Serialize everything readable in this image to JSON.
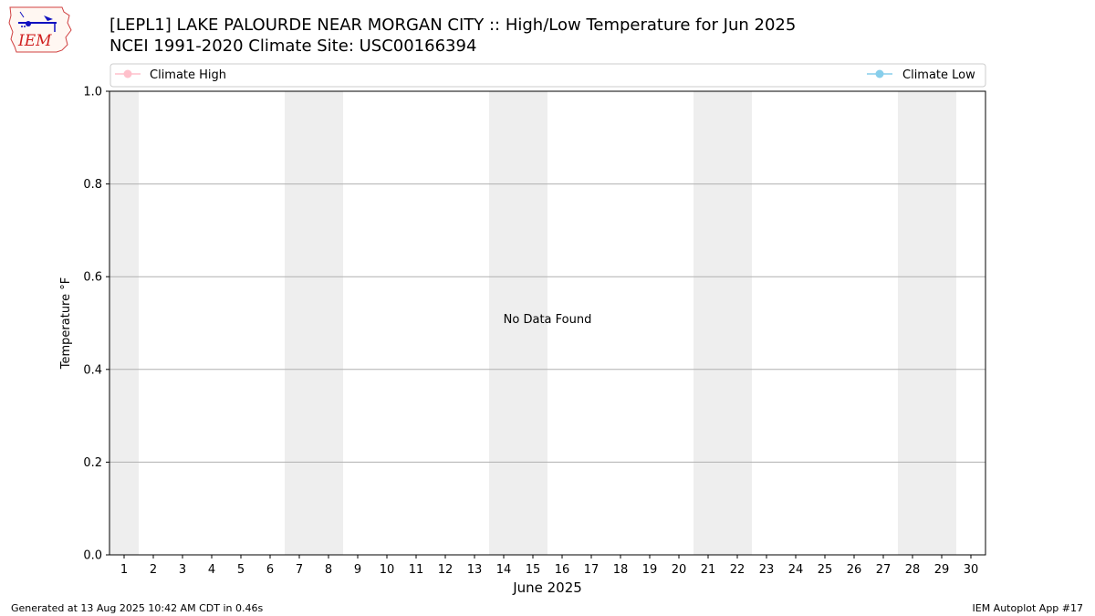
{
  "header": {
    "title_line1": "[LEPL1] LAKE PALOURDE NEAR MORGAN CITY :: High/Low Temperature for Jun 2025",
    "title_line2": "NCEI 1991-2020 Climate Site: USC00166394",
    "logo_text": "IEM"
  },
  "footer": {
    "generated": "Generated at 13 Aug 2025 10:42 AM CDT in 0.46s",
    "app": "IEM Autoplot App #17"
  },
  "colors": {
    "climate_high": "#ffc0cb",
    "climate_low": "#87ceeb",
    "weekend_shade": "#eeeeee",
    "grid": "#b0b0b0"
  },
  "chart_data": {
    "type": "line",
    "xlabel": "June 2025",
    "ylabel": "Temperature °F",
    "x_ticks": [
      "1",
      "2",
      "3",
      "4",
      "5",
      "6",
      "7",
      "8",
      "9",
      "10",
      "11",
      "12",
      "13",
      "14",
      "15",
      "16",
      "17",
      "18",
      "19",
      "20",
      "21",
      "22",
      "23",
      "24",
      "25",
      "26",
      "27",
      "28",
      "29",
      "30"
    ],
    "xlim": [
      0.5,
      30.5
    ],
    "ylim": [
      0,
      1
    ],
    "y_ticks": [
      "0.0",
      "0.2",
      "0.4",
      "0.6",
      "0.8",
      "1.0"
    ],
    "grid": "horizontal",
    "shaded_days": [
      [
        1,
        1
      ],
      [
        7,
        8
      ],
      [
        14,
        15
      ],
      [
        21,
        22
      ],
      [
        28,
        29
      ]
    ],
    "series": [
      {
        "name": "Climate High",
        "color": "#ffc0cb",
        "values": []
      },
      {
        "name": "Climate Low",
        "color": "#87ceeb",
        "values": []
      }
    ],
    "annotation": "No Data Found",
    "legend_position": "top"
  }
}
